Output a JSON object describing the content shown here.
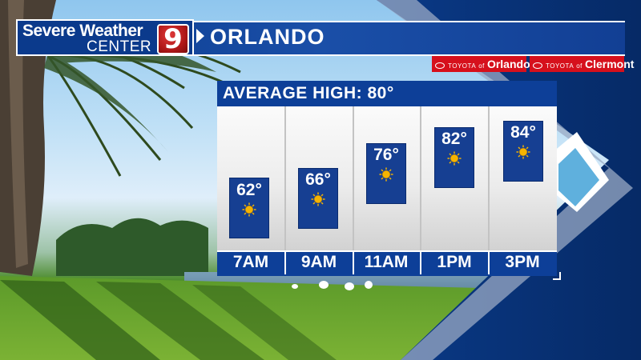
{
  "header": {
    "brand_line1": "Severe Weather",
    "brand_line2": "CENTER",
    "brand_number": "9",
    "city": "ORLANDO"
  },
  "sponsors": [
    {
      "prefix": "TOYOTA",
      "of": "of",
      "name": "Orlando"
    },
    {
      "prefix": "TOYOTA",
      "of": "of",
      "name": "Clermont"
    }
  ],
  "forecast": {
    "title": "AVERAGE HIGH: 80°",
    "periods": [
      {
        "time": "7AM",
        "temp": "62°",
        "icon": "sun-icon"
      },
      {
        "time": "9AM",
        "temp": "66°",
        "icon": "sun-icon"
      },
      {
        "time": "11AM",
        "temp": "76°",
        "icon": "sun-icon"
      },
      {
        "time": "1PM",
        "temp": "82°",
        "icon": "sun-icon"
      },
      {
        "time": "3PM",
        "temp": "84°",
        "icon": "sun-icon"
      }
    ]
  },
  "colors": {
    "brand_blue": "#0d3f98",
    "logo_red": "#b01818",
    "sponsor_red": "#d6101c",
    "sun_yellow": "#f6b400"
  }
}
